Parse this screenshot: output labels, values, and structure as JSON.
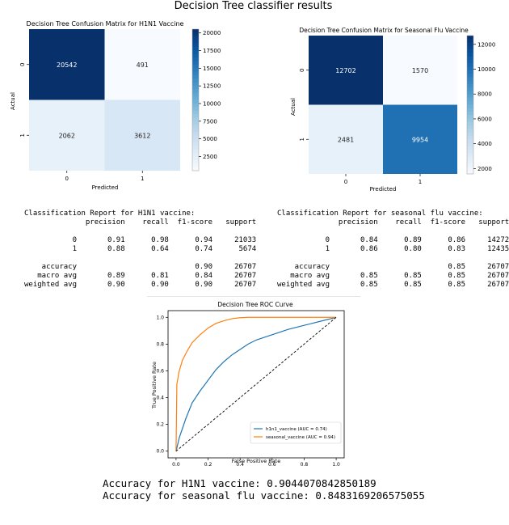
{
  "page_title": "Decision Tree classifier results",
  "chart_data": [
    {
      "type": "heatmap",
      "title": "Decision Tree Confusion Matrix for H1N1 Vaccine",
      "xlabel": "Predicted",
      "ylabel": "Actual",
      "x_categories": [
        "0",
        "1"
      ],
      "y_categories": [
        "0",
        "1"
      ],
      "values": [
        [
          20542,
          491
        ],
        [
          2062,
          3612
        ]
      ],
      "colormap": "Blues",
      "colorbar_range": [
        491,
        20542
      ],
      "colorbar_ticks": [
        "20000",
        "17500",
        "15000",
        "12500",
        "10000",
        "7500",
        "5000",
        "2500"
      ],
      "colorbar_tick_values": [
        20000,
        17500,
        15000,
        12500,
        10000,
        7500,
        5000,
        2500
      ]
    },
    {
      "type": "heatmap",
      "title": "Decision Tree Confusion Matrix for Seasonal Flu Vaccine",
      "xlabel": "Predicted",
      "ylabel": "Actual",
      "x_categories": [
        "0",
        "1"
      ],
      "y_categories": [
        "0",
        "1"
      ],
      "values": [
        [
          12702,
          1570
        ],
        [
          2481,
          9954
        ]
      ],
      "colormap": "Blues",
      "colorbar_range": [
        1570,
        12702
      ],
      "colorbar_ticks": [
        "12000",
        "10000",
        "8000",
        "6000",
        "4000",
        "2000"
      ],
      "colorbar_tick_values": [
        12000,
        10000,
        8000,
        6000,
        4000,
        2000
      ]
    },
    {
      "type": "line",
      "title": "Decision Tree ROC Curve",
      "xlabel": "False Positive Rate",
      "ylabel": "True Positive Rate",
      "xlim": [
        0,
        1
      ],
      "ylim": [
        0,
        1
      ],
      "x_ticks": [
        "0.0",
        "0.2",
        "0.4",
        "0.6",
        "0.8",
        "1.0"
      ],
      "y_ticks": [
        "0.0",
        "0.2",
        "0.4",
        "0.6",
        "0.8",
        "1.0"
      ],
      "legend_position": "lower-right",
      "series": [
        {
          "name": "h1n1_vaccine (AUC = 0.74)",
          "color": "#1f77b4",
          "x": [
            0,
            0.02,
            0.06,
            0.1,
            0.15,
            0.2,
            0.25,
            0.3,
            0.35,
            0.4,
            0.45,
            0.5,
            0.55,
            0.6,
            0.7,
            0.8,
            0.9,
            1.0
          ],
          "y": [
            0,
            0.1,
            0.24,
            0.36,
            0.45,
            0.53,
            0.61,
            0.67,
            0.72,
            0.76,
            0.8,
            0.83,
            0.85,
            0.87,
            0.91,
            0.94,
            0.97,
            1.0
          ]
        },
        {
          "name": "seasonal_vaccine (AUC = 0.94)",
          "color": "#ff7f0e",
          "x": [
            0,
            0.005,
            0.02,
            0.04,
            0.07,
            0.1,
            0.15,
            0.2,
            0.25,
            0.3,
            0.35,
            0.4,
            0.45,
            0.5,
            0.6,
            0.8,
            1.0
          ],
          "y": [
            0,
            0.5,
            0.6,
            0.68,
            0.75,
            0.81,
            0.87,
            0.92,
            0.955,
            0.975,
            0.99,
            0.997,
            1.0,
            1.0,
            1.0,
            1.0,
            1.0
          ]
        },
        {
          "name": "",
          "color": "#000000",
          "style": "dashed",
          "x": [
            0,
            1
          ],
          "y": [
            0,
            1
          ]
        }
      ]
    }
  ],
  "reports": {
    "h1n1": "Classification Report for H1N1 vaccine:\n              precision    recall  f1-score   support\n\n           0       0.91      0.98      0.94     21033\n           1       0.88      0.64      0.74      5674\n\n    accuracy                           0.90     26707\n   macro avg       0.89      0.81      0.84     26707\nweighted avg       0.90      0.90      0.90     26707",
    "seasonal": "Classification Report for seasonal flu vaccine:\n              precision    recall  f1-score   support\n\n           0       0.84      0.89      0.86     14272\n           1       0.86      0.80      0.83     12435\n\n    accuracy                           0.85     26707\n   macro avg       0.85      0.85      0.85     26707\nweighted avg       0.85      0.85      0.85     26707"
  },
  "accuracy_lines": [
    "Accuracy for H1N1 vaccine: 0.9044070842850189",
    "Accuracy for seasonal flu vaccine: 0.8483169206575055"
  ]
}
